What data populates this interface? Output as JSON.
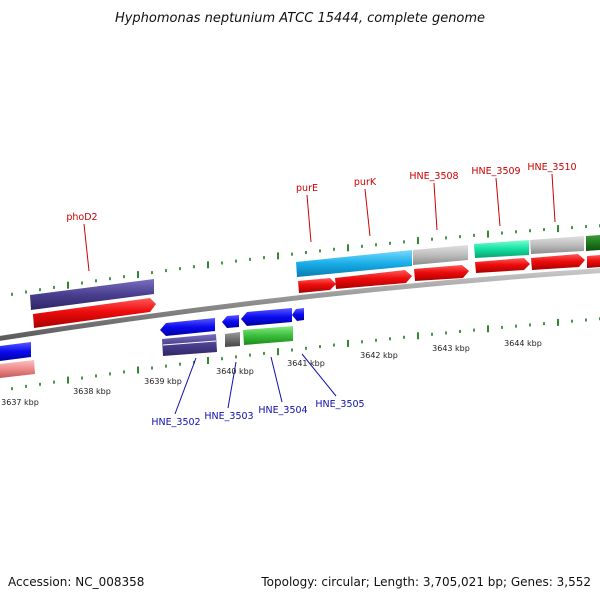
{
  "title": "Hyphomonas neptunium ATCC 15444, complete genome",
  "footer": {
    "accession": "Accession: NC_008358",
    "summary": "Topology: circular; Length: 3,705,021 bp; Genes: 3,552"
  },
  "colors": {
    "tick": "#1a7a1a",
    "forward_label": "#cc0000",
    "reverse_label": "#1010b0",
    "backbone": "#888888"
  },
  "kbp_labels": [
    "3637 kbp",
    "3638 kbp",
    "3639 kbp",
    "3640 kbp",
    "3641 kbp",
    "3642 kbp",
    "3643 kbp",
    "3644 kbp"
  ],
  "forward_labels": [
    "phoD2",
    "purE",
    "purK",
    "HNE_3508",
    "HNE_3509",
    "HNE_3510"
  ],
  "reverse_labels": [
    "HNE_3502",
    "HNE_3503",
    "HNE_3504",
    "HNE_3505"
  ]
}
